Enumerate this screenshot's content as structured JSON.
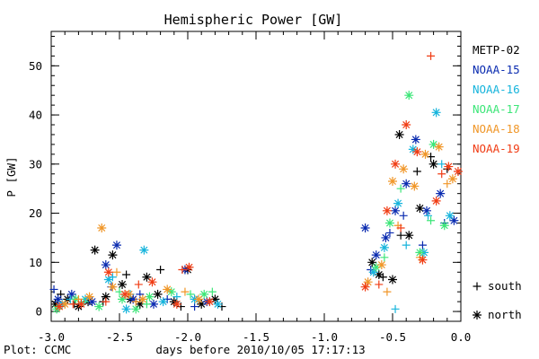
{
  "chart_data": {
    "type": "scatter",
    "title": "Hemispheric Power [GW]",
    "xlabel": "days before 2010/10/05 17:17:13",
    "ylabel": "P [GW]",
    "xlim": [
      -3.0,
      0.0
    ],
    "ylim": [
      -2,
      57
    ],
    "xticks": [
      -3.0,
      -2.5,
      -2.0,
      -1.5,
      -1.0,
      -0.5,
      0.0
    ],
    "xtick_labels": [
      "-3.0",
      "-2.5",
      "-2.0",
      "-1.5",
      "-1.0",
      "-0.5",
      "0.0"
    ],
    "yticks": [
      0,
      10,
      20,
      30,
      40,
      50
    ],
    "ytick_labels": [
      "0",
      "10",
      "20",
      "30",
      "40",
      "50"
    ],
    "grid": false,
    "legend_position": "right",
    "footer": "Plot: CCMC",
    "marker_legend": [
      {
        "symbol": "+",
        "label": "south"
      },
      {
        "symbol": "*",
        "label": "north"
      }
    ],
    "series": [
      {
        "name": "METP-02",
        "color": "#000000",
        "points": [
          [
            -2.97,
            1.5,
            "north"
          ],
          [
            -2.88,
            2.5,
            "north"
          ],
          [
            -2.8,
            1.0,
            "north"
          ],
          [
            -2.73,
            2.0,
            "north"
          ],
          [
            -2.68,
            12.5,
            "north"
          ],
          [
            -2.6,
            3.0,
            "north"
          ],
          [
            -2.55,
            11.5,
            "north"
          ],
          [
            -2.48,
            5.5,
            "north"
          ],
          [
            -2.42,
            2.5,
            "north"
          ],
          [
            -2.35,
            1.5,
            "north"
          ],
          [
            -2.3,
            7.0,
            "north"
          ],
          [
            -2.22,
            3.5,
            "north"
          ],
          [
            -2.1,
            2.0,
            "north"
          ],
          [
            -2.0,
            8.5,
            "north"
          ],
          [
            -1.9,
            1.5,
            "north"
          ],
          [
            -1.8,
            2.5,
            "north"
          ],
          [
            -0.65,
            10.0,
            "north"
          ],
          [
            -0.6,
            7.5,
            "north"
          ],
          [
            -0.5,
            6.5,
            "north"
          ],
          [
            -0.45,
            36.0,
            "north"
          ],
          [
            -0.38,
            15.5,
            "north"
          ],
          [
            -0.3,
            21.0,
            "north"
          ],
          [
            -0.2,
            30.0,
            "north"
          ],
          [
            -2.93,
            3.5,
            "south"
          ],
          [
            -2.83,
            1.5,
            "south"
          ],
          [
            -2.62,
            2.0,
            "south"
          ],
          [
            -2.45,
            7.5,
            "south"
          ],
          [
            -2.2,
            8.5,
            "south"
          ],
          [
            -2.05,
            1.0,
            "south"
          ],
          [
            -1.75,
            1.0,
            "south"
          ],
          [
            -0.57,
            7.0,
            "south"
          ],
          [
            -0.44,
            15.5,
            "south"
          ],
          [
            -0.32,
            28.5,
            "south"
          ],
          [
            -0.22,
            31.5,
            "south"
          ],
          [
            -0.1,
            29.0,
            "south"
          ]
        ]
      },
      {
        "name": "NOAA-15",
        "color": "#0a2bb0",
        "points": [
          [
            -2.95,
            2.5,
            "north"
          ],
          [
            -2.85,
            3.5,
            "north"
          ],
          [
            -2.7,
            2.0,
            "north"
          ],
          [
            -2.6,
            9.5,
            "north"
          ],
          [
            -2.52,
            13.5,
            "north"
          ],
          [
            -2.4,
            2.5,
            "north"
          ],
          [
            -2.25,
            1.5,
            "north"
          ],
          [
            -2.02,
            8.5,
            "north"
          ],
          [
            -1.86,
            2.0,
            "north"
          ],
          [
            -0.7,
            17.0,
            "north"
          ],
          [
            -0.62,
            11.5,
            "north"
          ],
          [
            -0.55,
            15.0,
            "north"
          ],
          [
            -0.48,
            20.5,
            "north"
          ],
          [
            -0.4,
            26.0,
            "north"
          ],
          [
            -0.33,
            35.0,
            "north"
          ],
          [
            -0.25,
            20.5,
            "north"
          ],
          [
            -0.15,
            24.0,
            "north"
          ],
          [
            -0.05,
            18.5,
            "north"
          ],
          [
            -2.98,
            4.5,
            "south"
          ],
          [
            -2.78,
            1.5,
            "south"
          ],
          [
            -2.56,
            5.0,
            "south"
          ],
          [
            -2.35,
            3.5,
            "south"
          ],
          [
            -2.15,
            2.5,
            "south"
          ],
          [
            -1.95,
            1.0,
            "south"
          ],
          [
            -0.66,
            8.5,
            "south"
          ],
          [
            -0.52,
            16.0,
            "south"
          ],
          [
            -0.42,
            19.5,
            "south"
          ],
          [
            -0.28,
            13.5,
            "south"
          ],
          [
            -0.12,
            18.0,
            "south"
          ]
        ]
      },
      {
        "name": "NOAA-16",
        "color": "#16b4dc",
        "points": [
          [
            -2.92,
            1.5,
            "north"
          ],
          [
            -2.75,
            2.5,
            "north"
          ],
          [
            -2.58,
            6.5,
            "north"
          ],
          [
            -2.45,
            0.5,
            "north"
          ],
          [
            -2.32,
            12.5,
            "north"
          ],
          [
            -2.18,
            2.0,
            "north"
          ],
          [
            -1.95,
            2.5,
            "north"
          ],
          [
            -1.78,
            1.5,
            "north"
          ],
          [
            -0.64,
            8.0,
            "north"
          ],
          [
            -0.56,
            13.0,
            "north"
          ],
          [
            -0.46,
            22.0,
            "north"
          ],
          [
            -0.35,
            33.0,
            "north"
          ],
          [
            -0.27,
            12.0,
            "north"
          ],
          [
            -0.18,
            40.5,
            "north"
          ],
          [
            -0.08,
            19.5,
            "north"
          ],
          [
            -2.86,
            2.5,
            "south"
          ],
          [
            -2.55,
            7.0,
            "south"
          ],
          [
            -2.42,
            3.5,
            "south"
          ],
          [
            -2.08,
            3.0,
            "south"
          ],
          [
            -0.48,
            0.5,
            "south"
          ],
          [
            -0.4,
            13.5,
            "south"
          ],
          [
            -0.24,
            19.5,
            "south"
          ],
          [
            -0.14,
            30.0,
            "south"
          ]
        ]
      },
      {
        "name": "NOAA-17",
        "color": "#3ce678",
        "points": [
          [
            -2.96,
            0.5,
            "north"
          ],
          [
            -2.82,
            2.5,
            "north"
          ],
          [
            -2.65,
            1.0,
            "north"
          ],
          [
            -2.48,
            2.5,
            "north"
          ],
          [
            -2.38,
            0.5,
            "north"
          ],
          [
            -2.28,
            3.0,
            "north"
          ],
          [
            -2.12,
            4.0,
            "north"
          ],
          [
            -1.88,
            3.5,
            "north"
          ],
          [
            -0.62,
            9.0,
            "north"
          ],
          [
            -0.52,
            18.0,
            "north"
          ],
          [
            -0.38,
            44.0,
            "north"
          ],
          [
            -0.3,
            12.0,
            "north"
          ],
          [
            -0.2,
            34.0,
            "north"
          ],
          [
            -0.12,
            17.5,
            "north"
          ],
          [
            -2.76,
            2.0,
            "south"
          ],
          [
            -2.5,
            4.0,
            "south"
          ],
          [
            -2.3,
            1.5,
            "south"
          ],
          [
            -1.98,
            3.5,
            "south"
          ],
          [
            -1.82,
            4.0,
            "south"
          ],
          [
            -0.56,
            11.0,
            "south"
          ],
          [
            -0.44,
            25.0,
            "south"
          ],
          [
            -0.22,
            18.5,
            "south"
          ]
        ]
      },
      {
        "name": "NOAA-18",
        "color": "#f09628",
        "points": [
          [
            -2.9,
            1.5,
            "north"
          ],
          [
            -2.72,
            3.0,
            "north"
          ],
          [
            -2.63,
            17.0,
            "north"
          ],
          [
            -2.55,
            5.0,
            "north"
          ],
          [
            -2.43,
            3.5,
            "north"
          ],
          [
            -2.33,
            2.5,
            "north"
          ],
          [
            -2.15,
            4.5,
            "north"
          ],
          [
            -1.92,
            2.5,
            "north"
          ],
          [
            -0.68,
            6.0,
            "north"
          ],
          [
            -0.58,
            9.5,
            "north"
          ],
          [
            -0.5,
            26.5,
            "north"
          ],
          [
            -0.42,
            29.0,
            "north"
          ],
          [
            -0.34,
            25.5,
            "north"
          ],
          [
            -0.26,
            32.0,
            "north"
          ],
          [
            -0.16,
            33.5,
            "north"
          ],
          [
            -0.06,
            27.0,
            "north"
          ],
          [
            -2.8,
            2.5,
            "south"
          ],
          [
            -2.52,
            8.0,
            "south"
          ],
          [
            -2.38,
            2.0,
            "south"
          ],
          [
            -2.02,
            4.0,
            "south"
          ],
          [
            -0.54,
            4.0,
            "south"
          ],
          [
            -0.46,
            17.5,
            "south"
          ],
          [
            -0.3,
            11.0,
            "south"
          ],
          [
            -0.1,
            26.0,
            "south"
          ]
        ]
      },
      {
        "name": "NOAA-19",
        "color": "#f03c14",
        "points": [
          [
            -2.94,
            1.0,
            "north"
          ],
          [
            -2.78,
            1.5,
            "north"
          ],
          [
            -2.58,
            8.0,
            "north"
          ],
          [
            -2.46,
            3.5,
            "north"
          ],
          [
            -2.26,
            6.0,
            "north"
          ],
          [
            -2.08,
            1.5,
            "north"
          ],
          [
            -1.99,
            9.0,
            "north"
          ],
          [
            -1.84,
            2.0,
            "north"
          ],
          [
            -0.7,
            5.0,
            "north"
          ],
          [
            -0.54,
            20.5,
            "north"
          ],
          [
            -0.48,
            30.0,
            "north"
          ],
          [
            -0.4,
            38.0,
            "north"
          ],
          [
            -0.32,
            32.5,
            "north"
          ],
          [
            -0.28,
            10.5,
            "north"
          ],
          [
            -0.18,
            22.5,
            "north"
          ],
          [
            -0.09,
            29.5,
            "north"
          ],
          [
            -0.02,
            28.5,
            "north"
          ],
          [
            -2.84,
            1.5,
            "south"
          ],
          [
            -2.6,
            2.0,
            "south"
          ],
          [
            -2.36,
            5.5,
            "south"
          ],
          [
            -2.04,
            8.5,
            "south"
          ],
          [
            -0.6,
            5.5,
            "south"
          ],
          [
            -0.44,
            17.0,
            "south"
          ],
          [
            -0.22,
            52.0,
            "south"
          ],
          [
            -0.14,
            28.0,
            "south"
          ]
        ]
      }
    ]
  }
}
